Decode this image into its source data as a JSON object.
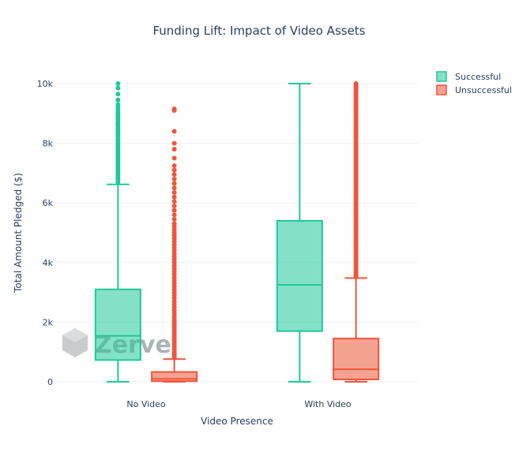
{
  "chart_data": {
    "type": "box",
    "title": "Funding Lift: Impact of Video Assets",
    "xlabel": "Video Presence",
    "ylabel": "Total Amount Pledged ($)",
    "categories": [
      "No Video",
      "With Video"
    ],
    "ylim": [
      0,
      10000
    ],
    "yticks": [
      0,
      2000,
      4000,
      6000,
      8000,
      10000
    ],
    "ytick_labels": [
      "0",
      "2k",
      "4k",
      "6k",
      "8k",
      "10k"
    ],
    "grid": true,
    "legend_position": "top-right",
    "series": [
      {
        "name": "Successful",
        "color": "#1fc99a",
        "boxes": [
          {
            "category": "No Video",
            "min": 0,
            "q1": 730,
            "median": 1540,
            "q3": 3100,
            "max": 6620,
            "outliers": [
              6700,
              6780,
              6850,
              6920,
              7000,
              7080,
              7150,
              7220,
              7300,
              7380,
              7450,
              7520,
              7600,
              7680,
              7750,
              7820,
              7900,
              7980,
              8050,
              8120,
              8200,
              8280,
              8350,
              8420,
              8500,
              8580,
              8650,
              8720,
              8800,
              8880,
              8950,
              9020,
              9100,
              9200,
              9300,
              9450,
              9650,
              9850,
              10000
            ]
          },
          {
            "category": "With Video",
            "min": 0,
            "q1": 1700,
            "median": 3250,
            "q3": 5400,
            "max": 10000,
            "outliers": []
          }
        ]
      },
      {
        "name": "Unsuccessful",
        "color": "#ef553b",
        "boxes": [
          {
            "category": "No Video",
            "min": 0,
            "q1": 20,
            "median": 100,
            "q3": 330,
            "max": 760,
            "outliers": [
              800,
              850,
              900,
              950,
              1000,
              1080,
              1150,
              1230,
              1300,
              1380,
              1450,
              1530,
              1600,
              1680,
              1750,
              1830,
              1900,
              1980,
              2050,
              2130,
              2200,
              2300,
              2400,
              2500,
              2600,
              2700,
              2800,
              2900,
              3000,
              3100,
              3200,
              3300,
              3400,
              3500,
              3600,
              3700,
              3800,
              3900,
              4000,
              4100,
              4200,
              4300,
              4400,
              4500,
              4600,
              4700,
              4800,
              4900,
              5000,
              5100,
              5200,
              5300,
              5450,
              5600,
              5750,
              5900,
              6050,
              6200,
              6350,
              6500,
              6650,
              6800,
              6950,
              7100,
              7250,
              7500,
              7800,
              8000,
              8400,
              9100,
              9150
            ]
          },
          {
            "category": "With Video",
            "min": 0,
            "q1": 80,
            "median": 420,
            "q3": 1450,
            "max": 3480,
            "outliers": [
              3520,
              3570,
              3620,
              3670,
              3720,
              3770,
              3820,
              3870,
              3920,
              3970,
              4020,
              4070,
              4120,
              4170,
              4220,
              4270,
              4320,
              4370,
              4420,
              4470,
              4520,
              4570,
              4620,
              4670,
              4720,
              4770,
              4820,
              4870,
              4920,
              4970,
              5020,
              5070,
              5120,
              5170,
              5220,
              5270,
              5320,
              5370,
              5420,
              5470,
              5520,
              5570,
              5620,
              5670,
              5720,
              5770,
              5820,
              5870,
              5920,
              5970,
              6020,
              6070,
              6120,
              6170,
              6220,
              6270,
              6320,
              6370,
              6420,
              6470,
              6520,
              6570,
              6620,
              6670,
              6720,
              6770,
              6820,
              6870,
              6920,
              6970,
              7020,
              7070,
              7120,
              7170,
              7220,
              7270,
              7320,
              7370,
              7420,
              7470,
              7520,
              7570,
              7620,
              7670,
              7720,
              7770,
              7820,
              7870,
              7920,
              7970,
              8020,
              8070,
              8120,
              8170,
              8220,
              8270,
              8320,
              8370,
              8420,
              8470,
              8520,
              8570,
              8620,
              8670,
              8720,
              8770,
              8820,
              8870,
              8920,
              8970,
              9020,
              9070,
              9120,
              9170,
              9220,
              9270,
              9320,
              9370,
              9420,
              9470,
              9520,
              9570,
              9620,
              9670,
              9720,
              9770,
              9820,
              9870,
              9920,
              9970,
              10000
            ]
          }
        ]
      }
    ]
  },
  "watermark": {
    "text": "Zerve",
    "icon": "zerve-logo-icon"
  }
}
